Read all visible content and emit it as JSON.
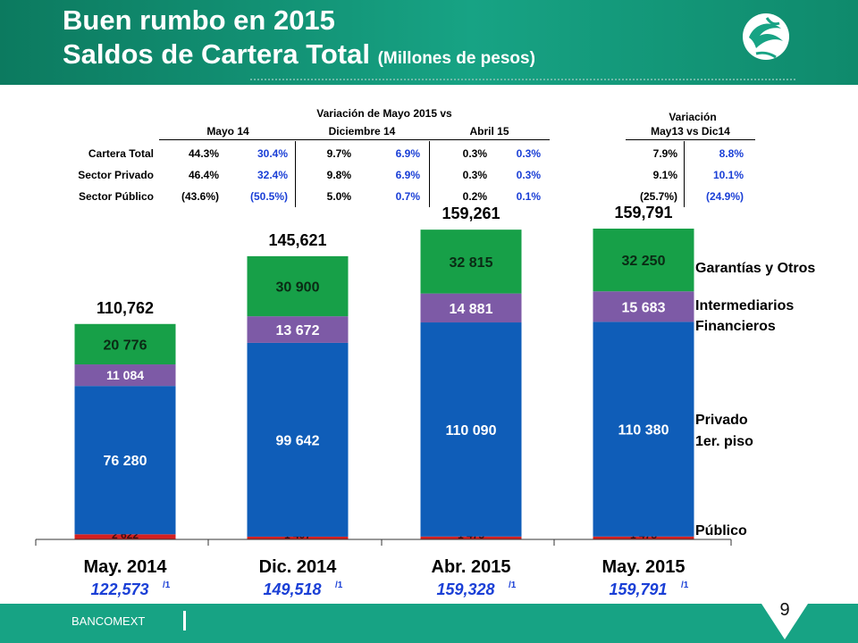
{
  "title": {
    "line1": "Buen rumbo en 2015",
    "line2": "Saldos de Cartera Total",
    "line2_sub": "(Millones de pesos)"
  },
  "variation_table": {
    "heading": "Variación de Mayo 2015 vs",
    "heading_right_1": "Variación",
    "columns": [
      "Mayo 14",
      "Diciembre 14",
      "Abril 15",
      "May13 vs Dic14"
    ],
    "rows": [
      {
        "label": "Cartera Total",
        "values": [
          "44.3%",
          "30.4%",
          "9.7%",
          "6.9%",
          "0.3%",
          "0.3%",
          "7.9%",
          "8.8%"
        ]
      },
      {
        "label": "Sector Privado",
        "values": [
          "46.4%",
          "32.4%",
          "9.8%",
          "6.9%",
          "0.3%",
          "0.3%",
          "9.1%",
          "10.1%"
        ]
      },
      {
        "label": "Sector Público",
        "values": [
          "(43.6%)",
          "(50.5%)",
          "5.0%",
          "0.7%",
          "0.2%",
          "0.1%",
          "(25.7%)",
          "(24.9%)"
        ]
      }
    ]
  },
  "chart_data": {
    "type": "bar",
    "stacked": true,
    "categories": [
      "May. 2014",
      "Dic. 2014",
      "Abr. 2015",
      "May. 2015"
    ],
    "totals": [
      "110,762",
      "145,621",
      "159,261",
      "159,791"
    ],
    "total_values": [
      110762,
      145621,
      159261,
      159791
    ],
    "sub_totals": [
      "122,573",
      "149,518",
      "159,328",
      "159,791"
    ],
    "sub_total_note": "/1",
    "series": [
      {
        "name": "Público",
        "color": "#d42020",
        "values": [
          2622,
          1407,
          1475,
          1478
        ],
        "labels": [
          "2 622",
          "1 407",
          "1 475",
          "1 478"
        ]
      },
      {
        "name": "Privado 1er. piso",
        "color": "#0f5db8",
        "values": [
          76280,
          99642,
          110090,
          110380
        ],
        "labels": [
          "76 280",
          "99 642",
          "110 090",
          "110 380"
        ]
      },
      {
        "name": "Intermediarios Financieros",
        "color": "#7d5aa6",
        "values": [
          11084,
          13672,
          14881,
          15683
        ],
        "labels": [
          "11 084",
          "13 672",
          "14 881",
          "15 683"
        ]
      },
      {
        "name": "Garantías y Otros",
        "color": "#17a048",
        "values": [
          20776,
          30900,
          32815,
          32250
        ],
        "labels": [
          "20 776",
          "30 900",
          "32 815",
          "32 250"
        ]
      }
    ],
    "ylim": [
      0,
      165000
    ]
  },
  "legend": {
    "garantias": "Garantías y Otros",
    "intermediarios_1": "Intermediarios",
    "intermediarios_2": "Financieros",
    "privado_1": "Privado",
    "privado_2": "1er. piso",
    "publico": "Público"
  },
  "footer": {
    "brand": "BANCOMEXT",
    "page": "9"
  },
  "colors": {
    "header": "#17a384",
    "accent_blue": "#1a3fd6"
  }
}
